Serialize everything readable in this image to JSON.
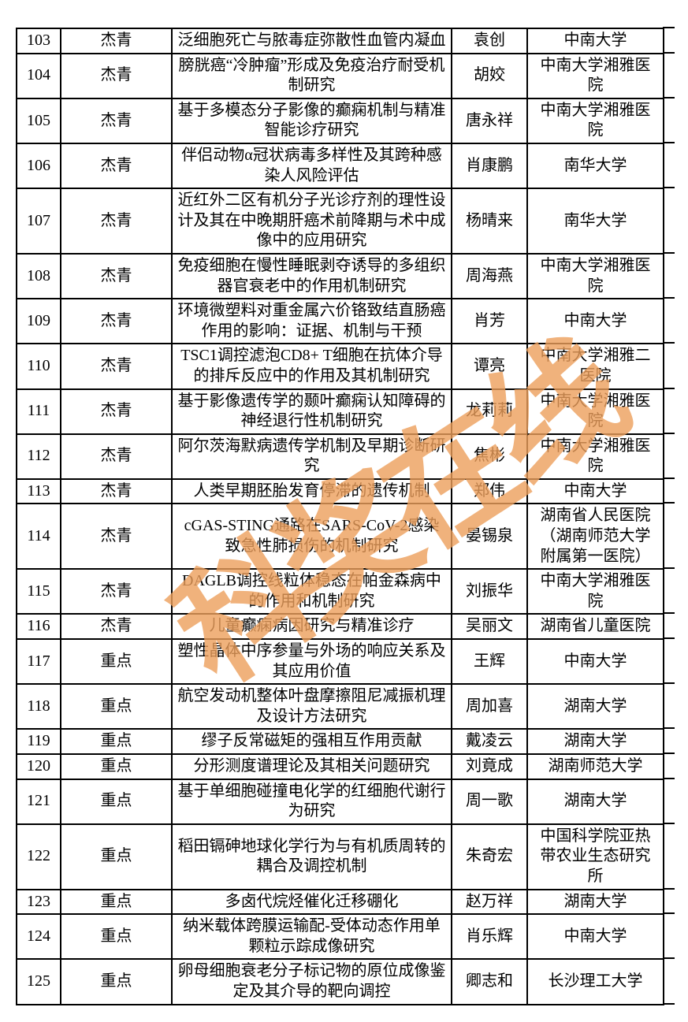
{
  "watermark": {
    "text": "科奖在线",
    "color": "#ED9F5C"
  },
  "table": {
    "rows": [
      {
        "number": "103",
        "category": "杰青",
        "title": "泛细胞死亡与脓毒症弥散性血管内凝血",
        "name": "袁创",
        "institution": "中南大学"
      },
      {
        "number": "104",
        "category": "杰青",
        "title": "膀胱癌“冷肿瘤”形成及免疫治疗耐受机制研究",
        "name": "胡姣",
        "institution": "中南大学湘雅医院"
      },
      {
        "number": "105",
        "category": "杰青",
        "title": "基于多模态分子影像的癫痫机制与精准智能诊疗研究",
        "name": "唐永祥",
        "institution": "中南大学湘雅医院"
      },
      {
        "number": "106",
        "category": "杰青",
        "title": "伴侣动物α冠状病毒多样性及其跨种感染人风险评估",
        "name": "肖康鹏",
        "institution": "南华大学"
      },
      {
        "number": "107",
        "category": "杰青",
        "title": "近红外二区有机分子光诊疗剂的理性设计及其在中晚期肝癌术前降期与术中成像中的应用研究",
        "name": "杨晴来",
        "institution": "南华大学"
      },
      {
        "number": "108",
        "category": "杰青",
        "title": "免疫细胞在慢性睡眠剥夺诱导的多组织器官衰老中的作用机制研究",
        "name": "周海燕",
        "institution": "中南大学湘雅医院"
      },
      {
        "number": "109",
        "category": "杰青",
        "title": "环境微塑料对重金属六价铬致结直肠癌作用的影响：证据、机制与干预",
        "name": "肖芳",
        "institution": "中南大学"
      },
      {
        "number": "110",
        "category": "杰青",
        "title": "TSC1调控滤泡CD8+ T细胞在抗体介导的排斥反应中的作用及其机制研究",
        "name": "谭亮",
        "institution": "中南大学湘雅二医院"
      },
      {
        "number": "111",
        "category": "杰青",
        "title": "基于影像遗传学的颞叶癫痫认知障碍的神经退行性机制研究",
        "name": "龙莉莉",
        "institution": "中南大学湘雅医院"
      },
      {
        "number": "112",
        "category": "杰青",
        "title": "阿尔茨海默病遗传学机制及早期诊断研究",
        "name": "焦彬",
        "institution": "中南大学湘雅医院"
      },
      {
        "number": "113",
        "category": "杰青",
        "title": "人类早期胚胎发育停滞的遗传机制",
        "name": "郑伟",
        "institution": "中南大学"
      },
      {
        "number": "114",
        "category": "杰青",
        "title": "cGAS-STING通路在SARS-CoV-2感染致急性肺损伤的机制研究",
        "name": "晏锡泉",
        "institution": "湖南省人民医院（湖南师范大学附属第一医院）"
      },
      {
        "number": "115",
        "category": "杰青",
        "title": "DAGLB调控线粒体稳态在帕金森病中的作用和机制研究",
        "name": "刘振华",
        "institution": "中南大学湘雅医院"
      },
      {
        "number": "116",
        "category": "杰青",
        "title": "儿童癫痫病因研究与精准诊疗",
        "name": "吴丽文",
        "institution": "湖南省儿童医院"
      },
      {
        "number": "117",
        "category": "重点",
        "title": "塑性晶体中序参量与外场的响应关系及其应用价值",
        "name": "王辉",
        "institution": "中南大学"
      },
      {
        "number": "118",
        "category": "重点",
        "title": "航空发动机整体叶盘摩擦阻尼减振机理及设计方法研究",
        "name": "周加喜",
        "institution": "湖南大学"
      },
      {
        "number": "119",
        "category": "重点",
        "title": "缪子反常磁矩的强相互作用贡献",
        "name": "戴凌云",
        "institution": "湖南大学"
      },
      {
        "number": "120",
        "category": "重点",
        "title": "分形测度谱理论及其相关问题研究",
        "name": "刘竟成",
        "institution": "湖南师范大学"
      },
      {
        "number": "121",
        "category": "重点",
        "title": "基于单细胞碰撞电化学的红细胞代谢行为研究",
        "name": "周一歌",
        "institution": "湖南大学"
      },
      {
        "number": "122",
        "category": "重点",
        "title": "稻田镉砷地球化学行为与有机质周转的耦合及调控机制",
        "name": "朱奇宏",
        "institution": "中国科学院亚热带农业生态研究所"
      },
      {
        "number": "123",
        "category": "重点",
        "title": "多卤代烷烃催化迁移硼化",
        "name": "赵万祥",
        "institution": "湖南大学"
      },
      {
        "number": "124",
        "category": "重点",
        "title": "纳米载体跨膜运输配-受体动态作用单颗粒示踪成像研究",
        "name": "肖乐辉",
        "institution": "中南大学"
      },
      {
        "number": "125",
        "category": "重点",
        "title": "卵母细胞衰老分子标记物的原位成像鉴定及其介导的靶向调控",
        "name": "卿志和",
        "institution": "长沙理工大学"
      }
    ]
  }
}
